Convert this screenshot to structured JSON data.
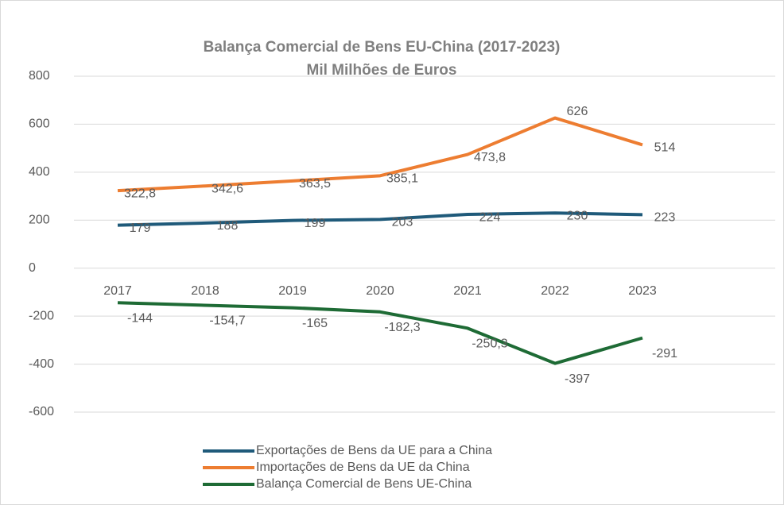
{
  "chart_data": {
    "type": "line",
    "title": "Balança Comercial de Bens EU-China (2017-2023)",
    "subtitle": "Mil Milhões de Euros",
    "categories": [
      "2017",
      "2018",
      "2019",
      "2020",
      "2021",
      "2022",
      "2023"
    ],
    "series": [
      {
        "name": "Exportações de Bens da UE para a China",
        "color": "#1f5a7a",
        "values": [
          179,
          188,
          199,
          203,
          224,
          230,
          223
        ]
      },
      {
        "name": "Importações de Bens da UE da China",
        "color": "#ed7d31",
        "values": [
          322.8,
          342.6,
          363.5,
          385.1,
          473.8,
          626,
          514
        ],
        "value_labels": [
          "322,8",
          "342,6",
          "363,5",
          "385,1",
          "473,8",
          "626",
          "514"
        ]
      },
      {
        "name": "Balança Comercial de Bens UE-China",
        "color": "#1e6b35",
        "values": [
          -144,
          -154.7,
          -165,
          -182.3,
          -250.3,
          -397,
          -291
        ],
        "value_labels": [
          "-144",
          "-154,7",
          "-165",
          "-182,3",
          "-250,3",
          "-397",
          "-291"
        ]
      }
    ],
    "ylim": [
      -600,
      800
    ],
    "yticks": [
      -600,
      -400,
      -200,
      0,
      200,
      400,
      600,
      800
    ],
    "grid": true
  }
}
